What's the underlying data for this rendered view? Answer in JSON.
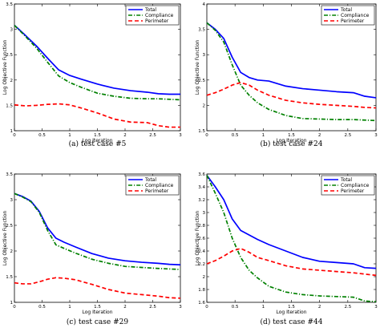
{
  "chart_data": [
    {
      "type": "line",
      "caption": "(a) test  case #5",
      "xlabel": "Log Iteration",
      "ylabel": "Log Objective Function",
      "xlim": [
        0,
        3
      ],
      "ylim": [
        1,
        3.5
      ],
      "xticks": [
        "0",
        "0.5",
        "1",
        "1.5",
        "2",
        "2.5",
        "3"
      ],
      "yticks": [
        "1",
        "1.5",
        "2",
        "2.5",
        "3",
        "3.5"
      ],
      "legend": "top-right",
      "series": [
        {
          "name": "Total",
          "color": "#0000ff",
          "dash": "solid",
          "x": [
            0,
            0.2,
            0.4,
            0.6,
            0.8,
            1.0,
            1.2,
            1.5,
            1.8,
            2.1,
            2.4,
            2.6,
            2.8,
            3.0
          ],
          "y": [
            3.08,
            2.88,
            2.67,
            2.43,
            2.2,
            2.09,
            2.02,
            1.92,
            1.84,
            1.79,
            1.76,
            1.73,
            1.72,
            1.72
          ]
        },
        {
          "name": "Compliance",
          "color": "#008000",
          "dash": "dashdot",
          "x": [
            0,
            0.2,
            0.4,
            0.6,
            0.8,
            1.0,
            1.2,
            1.5,
            1.8,
            2.1,
            2.4,
            2.6,
            2.8,
            3.0
          ],
          "y": [
            3.08,
            2.86,
            2.63,
            2.35,
            2.08,
            1.95,
            1.86,
            1.74,
            1.68,
            1.64,
            1.63,
            1.63,
            1.62,
            1.61
          ]
        },
        {
          "name": "Perimeter",
          "color": "#ff0000",
          "dash": "dashed",
          "x": [
            0,
            0.2,
            0.4,
            0.6,
            0.8,
            1.0,
            1.2,
            1.5,
            1.8,
            2.1,
            2.4,
            2.6,
            2.8,
            3.0
          ],
          "y": [
            1.51,
            1.49,
            1.5,
            1.52,
            1.53,
            1.51,
            1.45,
            1.35,
            1.23,
            1.17,
            1.16,
            1.1,
            1.07,
            1.07
          ]
        }
      ]
    },
    {
      "type": "line",
      "caption": "(b) test  case #24",
      "xlabel": "Log Iteration",
      "ylabel": "Log Objective Function",
      "xlim": [
        0,
        3
      ],
      "ylim": [
        1.5,
        4
      ],
      "xticks": [
        "0",
        "0.5",
        "1",
        "1.5",
        "2",
        "2.5",
        "3"
      ],
      "yticks": [
        "1.5",
        "2",
        "2.5",
        "3",
        "3.5",
        "4"
      ],
      "legend": "top-right",
      "series": [
        {
          "name": "Total",
          "color": "#0000ff",
          "dash": "solid",
          "x": [
            0,
            0.15,
            0.3,
            0.45,
            0.6,
            0.75,
            0.9,
            1.1,
            1.4,
            1.7,
            2.0,
            2.3,
            2.6,
            2.8,
            3.0
          ],
          "y": [
            3.63,
            3.5,
            3.32,
            2.95,
            2.65,
            2.55,
            2.5,
            2.48,
            2.38,
            2.33,
            2.3,
            2.27,
            2.25,
            2.18,
            2.15
          ]
        },
        {
          "name": "Compliance",
          "color": "#008000",
          "dash": "dashdot",
          "x": [
            0,
            0.15,
            0.3,
            0.45,
            0.6,
            0.75,
            0.9,
            1.1,
            1.4,
            1.7,
            2.0,
            2.3,
            2.6,
            2.8,
            3.0
          ],
          "y": [
            3.63,
            3.48,
            3.25,
            2.8,
            2.4,
            2.2,
            2.05,
            1.92,
            1.8,
            1.74,
            1.73,
            1.72,
            1.72,
            1.71,
            1.7
          ]
        },
        {
          "name": "Perimeter",
          "color": "#ff0000",
          "dash": "dashed",
          "x": [
            0,
            0.15,
            0.3,
            0.45,
            0.6,
            0.75,
            0.9,
            1.1,
            1.4,
            1.7,
            2.0,
            2.3,
            2.6,
            2.8,
            3.0
          ],
          "y": [
            2.2,
            2.25,
            2.32,
            2.4,
            2.45,
            2.4,
            2.3,
            2.2,
            2.1,
            2.05,
            2.02,
            2.0,
            1.98,
            1.96,
            1.95
          ]
        }
      ]
    },
    {
      "type": "line",
      "caption": "(c) test  case #29",
      "xlabel": "Log Iteration",
      "ylabel": "Log Objective Function",
      "xlim": [
        0,
        3
      ],
      "ylim": [
        1,
        3.5
      ],
      "xticks": [
        "0",
        "0.5",
        "1",
        "1.5",
        "2",
        "2.5",
        "3"
      ],
      "yticks": [
        "1",
        "1.5",
        "2",
        "2.5",
        "3",
        "3.5"
      ],
      "legend": "top-right",
      "series": [
        {
          "name": "Total",
          "color": "#0000ff",
          "dash": "solid",
          "x": [
            0,
            0.15,
            0.3,
            0.45,
            0.6,
            0.75,
            0.9,
            1.1,
            1.4,
            1.7,
            2.0,
            2.3,
            2.6,
            2.8,
            3.0
          ],
          "y": [
            3.12,
            3.06,
            2.97,
            2.77,
            2.45,
            2.25,
            2.17,
            2.08,
            1.95,
            1.86,
            1.81,
            1.78,
            1.76,
            1.74,
            1.73
          ]
        },
        {
          "name": "Compliance",
          "color": "#008000",
          "dash": "dashdot",
          "x": [
            0,
            0.15,
            0.3,
            0.45,
            0.6,
            0.75,
            0.9,
            1.1,
            1.4,
            1.7,
            2.0,
            2.3,
            2.6,
            2.8,
            3.0
          ],
          "y": [
            3.12,
            3.05,
            2.96,
            2.75,
            2.4,
            2.12,
            2.05,
            1.96,
            1.84,
            1.76,
            1.7,
            1.68,
            1.66,
            1.65,
            1.64
          ]
        },
        {
          "name": "Perimeter",
          "color": "#ff0000",
          "dash": "dashed",
          "x": [
            0,
            0.15,
            0.3,
            0.45,
            0.6,
            0.75,
            0.9,
            1.1,
            1.4,
            1.7,
            2.0,
            2.3,
            2.6,
            2.8,
            3.0
          ],
          "y": [
            1.38,
            1.36,
            1.36,
            1.4,
            1.45,
            1.48,
            1.47,
            1.44,
            1.35,
            1.25,
            1.18,
            1.15,
            1.12,
            1.09,
            1.08
          ]
        }
      ]
    },
    {
      "type": "line",
      "caption": "(d) test  case #44",
      "xlabel": "Log Iteration",
      "ylabel": "Log Objective Function",
      "xlim": [
        0,
        3
      ],
      "ylim": [
        1.6,
        3.6
      ],
      "xticks": [
        "0",
        "0.5",
        "1",
        "1.5",
        "2",
        "2.5",
        "3"
      ],
      "yticks": [
        "1.6",
        "1.8",
        "2",
        "2.2",
        "2.4",
        "2.6",
        "2.8",
        "3",
        "3.2",
        "3.4",
        "3.6"
      ],
      "legend": "top-right",
      "series": [
        {
          "name": "Total",
          "color": "#0000ff",
          "dash": "solid",
          "x": [
            0,
            0.15,
            0.3,
            0.45,
            0.6,
            0.75,
            0.9,
            1.1,
            1.4,
            1.7,
            2.0,
            2.3,
            2.6,
            2.8,
            3.0
          ],
          "y": [
            3.58,
            3.4,
            3.2,
            2.9,
            2.72,
            2.65,
            2.58,
            2.5,
            2.4,
            2.3,
            2.24,
            2.22,
            2.2,
            2.14,
            2.13
          ]
        },
        {
          "name": "Compliance",
          "color": "#008000",
          "dash": "dashdot",
          "x": [
            0,
            0.15,
            0.3,
            0.45,
            0.6,
            0.75,
            0.9,
            1.1,
            1.4,
            1.7,
            2.0,
            2.3,
            2.6,
            2.8,
            3.0
          ],
          "y": [
            3.58,
            3.3,
            3.0,
            2.6,
            2.3,
            2.1,
            1.98,
            1.85,
            1.76,
            1.72,
            1.7,
            1.69,
            1.68,
            1.62,
            1.61
          ]
        },
        {
          "name": "Perimeter",
          "color": "#ff0000",
          "dash": "dashed",
          "x": [
            0,
            0.15,
            0.3,
            0.45,
            0.6,
            0.75,
            0.9,
            1.1,
            1.4,
            1.7,
            2.0,
            2.3,
            2.6,
            2.8,
            3.0
          ],
          "y": [
            2.2,
            2.25,
            2.32,
            2.4,
            2.44,
            2.38,
            2.3,
            2.25,
            2.17,
            2.12,
            2.1,
            2.08,
            2.06,
            2.04,
            2.02
          ]
        }
      ]
    }
  ]
}
